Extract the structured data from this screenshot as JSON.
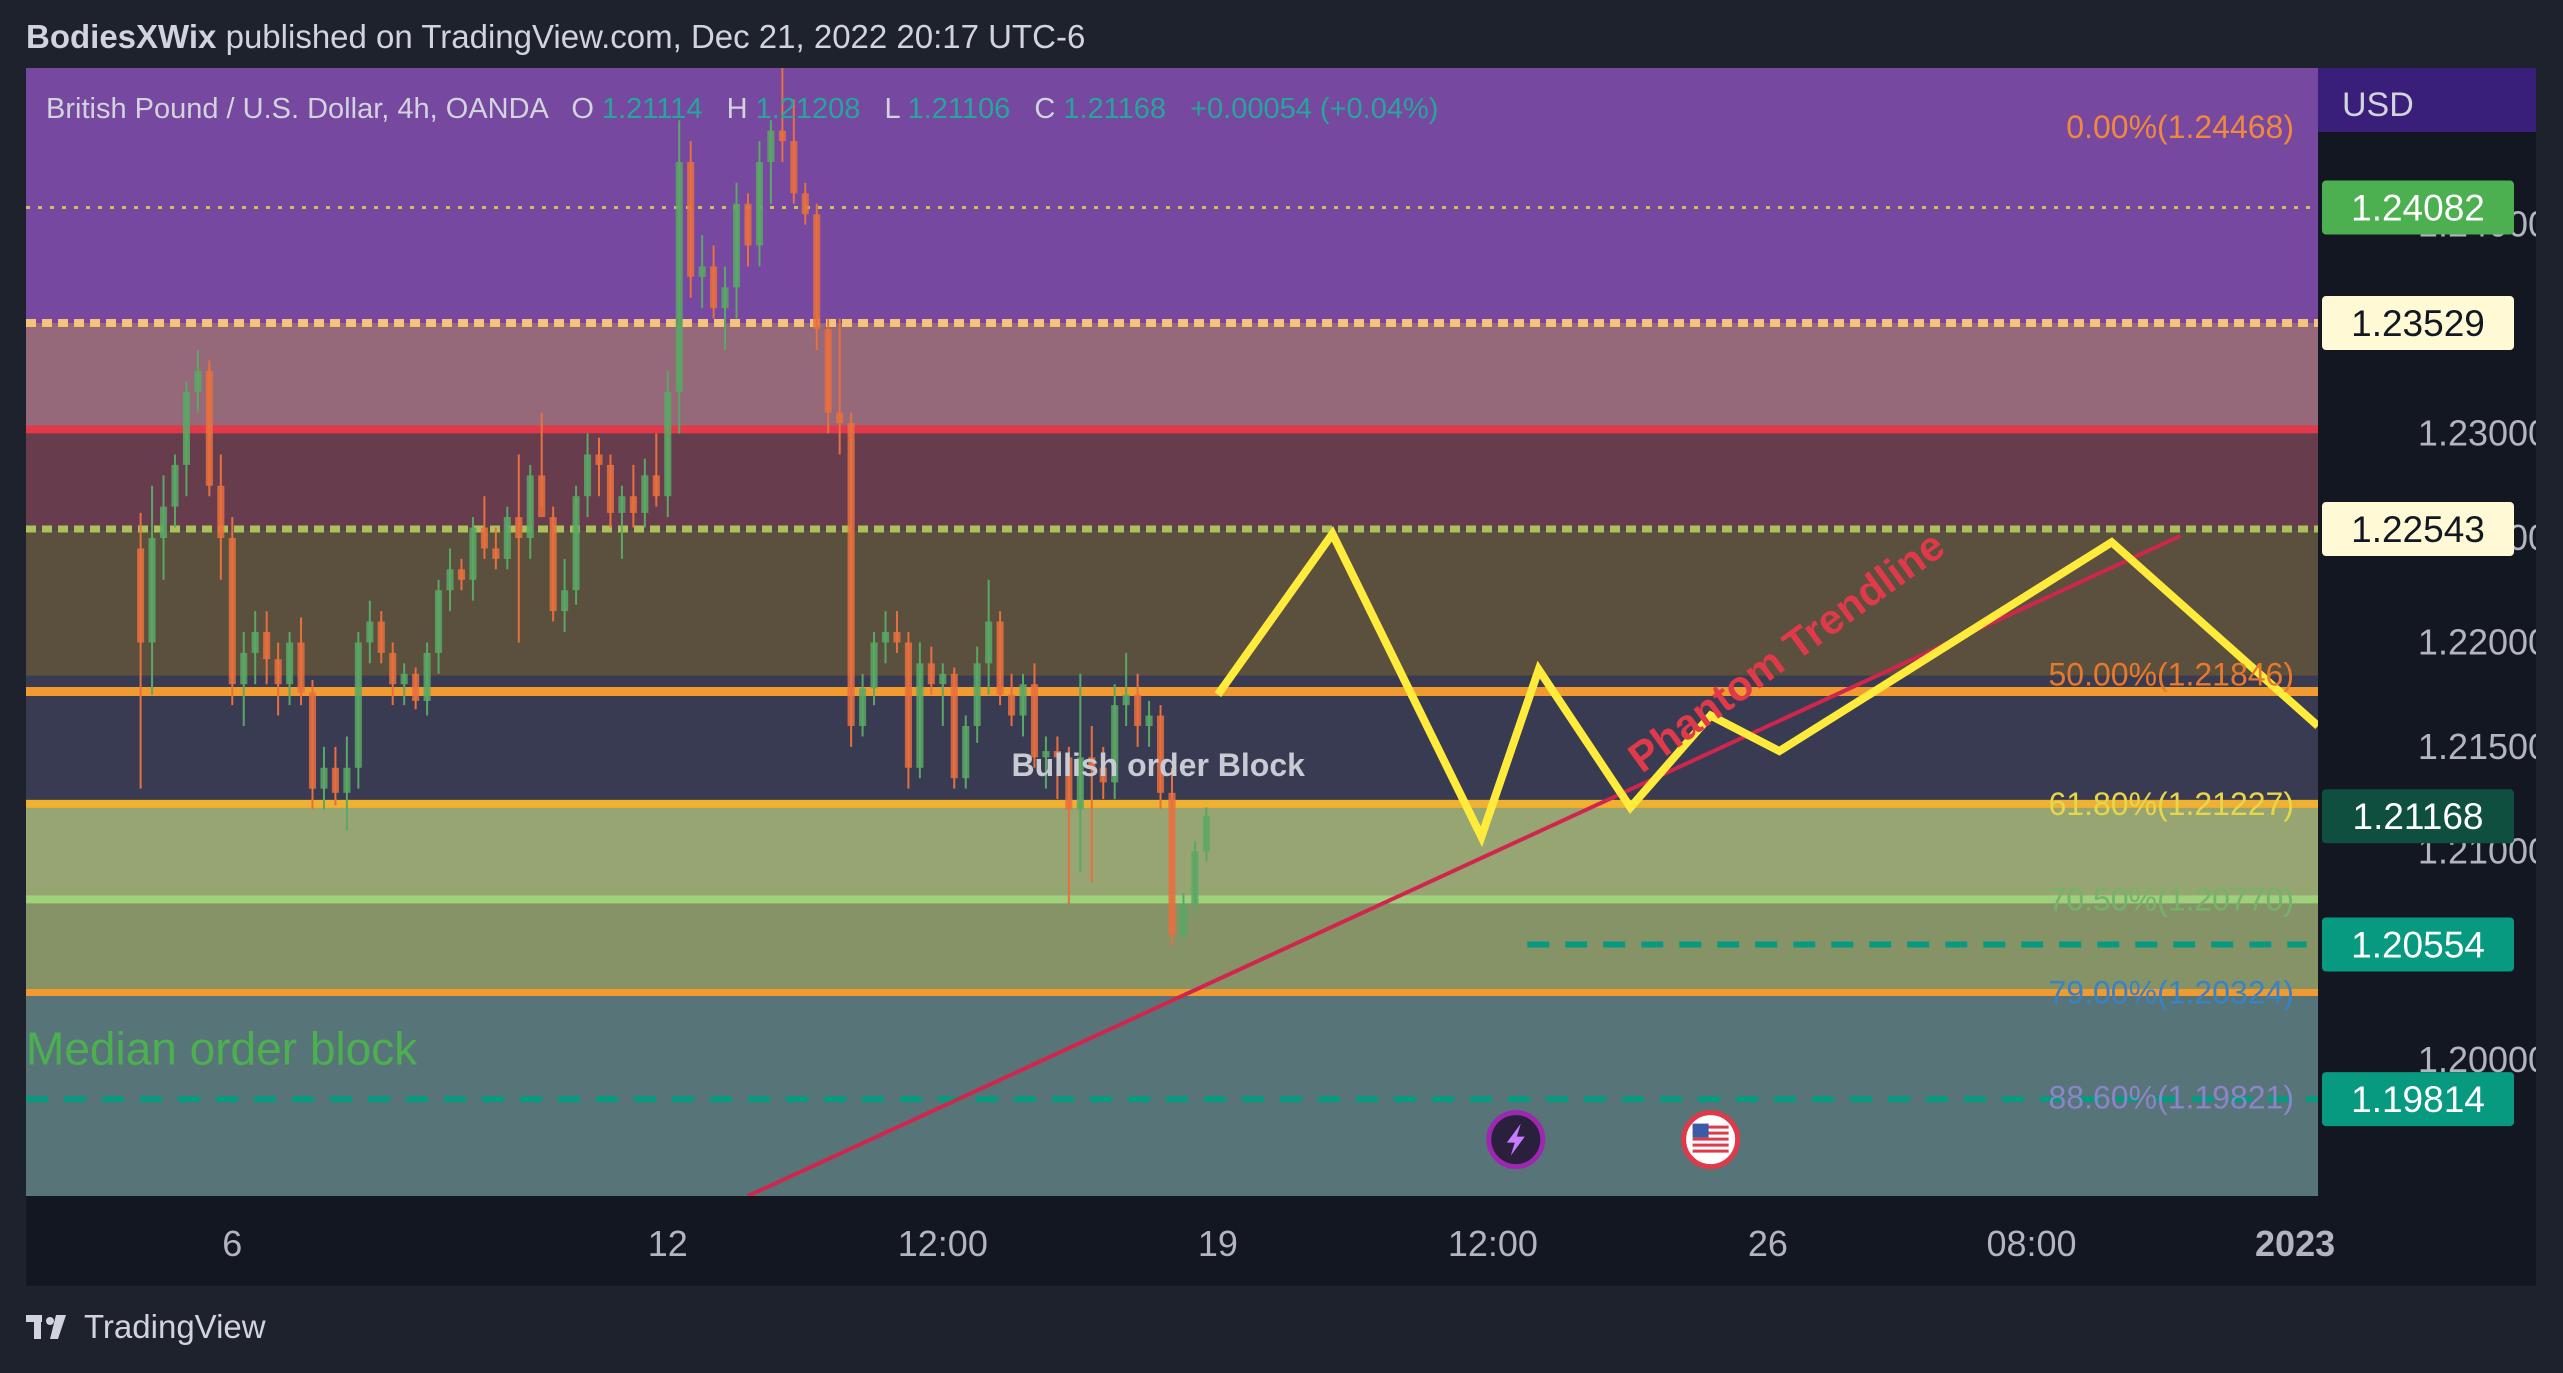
{
  "header": {
    "author": "BodiesXWix",
    "published_text": "published on TradingView.com, Dec 21, 2022 20:17 UTC-6"
  },
  "footer": {
    "brand": "TradingView",
    "logo_icon": "tradingview-logo-icon"
  },
  "chart_data": {
    "type": "candlestick",
    "symbol_line": {
      "name": "British Pound / U.S. Dollar, 4h, OANDA",
      "o_label": "O",
      "o_value": "1.21114",
      "h_label": "H",
      "h_value": "1.21208",
      "l_label": "L",
      "l_value": "1.21106",
      "c_label": "C",
      "c_value": "1.21168",
      "change": "+0.00054 (+0.04%)"
    },
    "currency": "USD",
    "ylim": [
      1.1935,
      1.2475
    ],
    "y_ticks": [
      "1.20000",
      "1.21000",
      "1.21500",
      "1.22000",
      "1.22500",
      "1.23000",
      "1.24000"
    ],
    "x_ticks": [
      {
        "label": "6",
        "x": 8,
        "bold": false
      },
      {
        "label": "12",
        "x": 46,
        "bold": false
      },
      {
        "label": "12:00",
        "x": 70,
        "bold": false
      },
      {
        "label": "19",
        "x": 94,
        "bold": false
      },
      {
        "label": "12:00",
        "x": 118,
        "bold": false
      },
      {
        "label": "26",
        "x": 142,
        "bold": false
      },
      {
        "label": "08:00",
        "x": 165,
        "bold": false
      },
      {
        "label": "2023",
        "x": 188,
        "bold": true
      }
    ],
    "xlim": [
      -10,
      190
    ],
    "price_labels": [
      {
        "value": 1.24082,
        "text": "1.24082",
        "bg": "#4caf50",
        "fg": "#ffffff"
      },
      {
        "value": 1.23529,
        "text": "1.23529",
        "bg": "#fff9d6",
        "fg": "#131722"
      },
      {
        "value": 1.22543,
        "text": "1.22543",
        "bg": "#fff9d6",
        "fg": "#131722"
      },
      {
        "value": 1.21168,
        "text": "1.21168",
        "bg": "#0e4f3f",
        "fg": "#ffffff"
      },
      {
        "value": 1.20554,
        "text": "1.20554",
        "bg": "#089981",
        "fg": "#ffffff"
      },
      {
        "value": 1.19814,
        "text": "1.19814",
        "bg": "#089981",
        "fg": "#ffffff"
      }
    ],
    "zones": [
      {
        "from": 1.2475,
        "to": 1.2353,
        "color": "#7b4ba8",
        "opacity": 0.95
      },
      {
        "from": 1.2353,
        "to": 1.2302,
        "color": "#9c6e7f",
        "opacity": 0.95
      },
      {
        "from": 1.2302,
        "to": 1.2254,
        "color": "#6b3e50",
        "opacity": 0.95
      },
      {
        "from": 1.2254,
        "to": 1.2184,
        "color": "#5f5240",
        "opacity": 0.95
      },
      {
        "from": 1.2184,
        "to": 1.2123,
        "color": "#3b3d55",
        "opacity": 0.95
      },
      {
        "from": 1.2123,
        "to": 1.2033,
        "color": "#8c9a6b",
        "opacity": 0.95
      },
      {
        "from": 1.2123,
        "to": 1.2077,
        "color": "#a3b07a",
        "opacity": 0.6
      },
      {
        "from": 1.2033,
        "to": 1.1935,
        "color": "#5b7a7d",
        "opacity": 0.95
      }
    ],
    "fib_levels": [
      {
        "text": "0.00%(1.24468)",
        "value": 1.24468,
        "color": "#f0883e"
      },
      {
        "text": "50.00%(1.21846)",
        "value": 1.21846,
        "color": "#e8782a"
      },
      {
        "text": "61.80%(1.21227)",
        "value": 1.21227,
        "color": "#e6d64a"
      },
      {
        "text": "70.50%(1.20770)",
        "value": 1.2077,
        "color": "#73b46a"
      },
      {
        "text": "79.00%(1.20324)",
        "value": 1.20324,
        "color": "#3b82c4"
      },
      {
        "text": "88.60%(1.19821)",
        "value": 1.19821,
        "color": "#8a84c9"
      }
    ],
    "h_lines": [
      {
        "value": 1.24082,
        "color": "#c8c25a",
        "width": 3,
        "dash": "4 8"
      },
      {
        "value": 1.23529,
        "color": "#f5c47a",
        "width": 8,
        "dash": "10 6"
      },
      {
        "value": 1.2302,
        "color": "#e0394a",
        "width": 8,
        "dash": ""
      },
      {
        "value": 1.22543,
        "color": "#a9c25a",
        "width": 7,
        "dash": "10 6"
      },
      {
        "value": 1.21765,
        "color": "#f09a30",
        "width": 9,
        "dash": ""
      },
      {
        "value": 1.21227,
        "color": "#f0b030",
        "width": 8,
        "dash": ""
      },
      {
        "value": 1.2077,
        "color": "#9fd07c",
        "width": 8,
        "dash": ""
      },
      {
        "value": 1.20324,
        "color": "#f09a30",
        "width": 7,
        "dash": ""
      },
      {
        "value": 1.19814,
        "color": "#089981",
        "width": 6,
        "dash": "22 16"
      }
    ],
    "short_dashed": {
      "value": 1.20554,
      "x_from": 121,
      "x_to": 189,
      "color": "#089981"
    },
    "annotations": [
      {
        "text": "Bullish order Block",
        "x": 76,
        "value": 1.2136,
        "color": "#c8cbd4",
        "size": 32,
        "bold": true,
        "rotate": 0
      },
      {
        "text": "Median order block",
        "x": -10,
        "value": 1.1998,
        "color": "#4caf50",
        "size": 46,
        "bold": false,
        "rotate": 0
      },
      {
        "text": "Phantom Trendline",
        "x": 131,
        "value": 1.2137,
        "color": "#e0394a",
        "size": 42,
        "bold": true,
        "rotate": -36
      }
    ],
    "trendline": {
      "points": [
        [
          53,
          1.1935
        ],
        [
          178,
          1.2251
        ]
      ],
      "color": "#d0264e"
    },
    "projection": {
      "color": "#ffeb3b",
      "points": [
        [
          94,
          1.2175
        ],
        [
          104,
          1.2252
        ],
        [
          117,
          1.2107
        ],
        [
          122,
          1.2187
        ],
        [
          130,
          1.2121
        ],
        [
          137,
          1.2165
        ],
        [
          143,
          1.2148
        ],
        [
          172,
          1.2248
        ],
        [
          190,
          1.216
        ]
      ]
    },
    "events": [
      {
        "icon": "lightning-icon",
        "x": 120,
        "value": 1.1962,
        "bg": "#2a1f3d",
        "ring": "#9c27b0"
      },
      {
        "icon": "us-flag-icon",
        "x": 137,
        "value": 1.1962,
        "bg": "#ffffff",
        "ring": "#e0394a"
      }
    ],
    "candles": [
      {
        "o": 1.2245,
        "h": 1.2262,
        "l": 1.213,
        "c": 1.22
      },
      {
        "o": 1.22,
        "h": 1.2275,
        "l": 1.2175,
        "c": 1.225
      },
      {
        "o": 1.225,
        "h": 1.228,
        "l": 1.223,
        "c": 1.2265
      },
      {
        "o": 1.2265,
        "h": 1.229,
        "l": 1.2255,
        "c": 1.2285
      },
      {
        "o": 1.2285,
        "h": 1.2325,
        "l": 1.227,
        "c": 1.232
      },
      {
        "o": 1.232,
        "h": 1.234,
        "l": 1.231,
        "c": 1.233
      },
      {
        "o": 1.233,
        "h": 1.2335,
        "l": 1.227,
        "c": 1.2275
      },
      {
        "o": 1.2275,
        "h": 1.229,
        "l": 1.223,
        "c": 1.225
      },
      {
        "o": 1.225,
        "h": 1.226,
        "l": 1.217,
        "c": 1.218
      },
      {
        "o": 1.218,
        "h": 1.2205,
        "l": 1.216,
        "c": 1.2195
      },
      {
        "o": 1.2195,
        "h": 1.2215,
        "l": 1.218,
        "c": 1.2205
      },
      {
        "o": 1.2205,
        "h": 1.2215,
        "l": 1.218,
        "c": 1.2192
      },
      {
        "o": 1.2192,
        "h": 1.22,
        "l": 1.2165,
        "c": 1.218
      },
      {
        "o": 1.218,
        "h": 1.2205,
        "l": 1.217,
        "c": 1.22
      },
      {
        "o": 1.22,
        "h": 1.2212,
        "l": 1.217,
        "c": 1.2176
      },
      {
        "o": 1.2176,
        "h": 1.2182,
        "l": 1.212,
        "c": 1.213
      },
      {
        "o": 1.213,
        "h": 1.215,
        "l": 1.212,
        "c": 1.214
      },
      {
        "o": 1.214,
        "h": 1.215,
        "l": 1.2122,
        "c": 1.2128
      },
      {
        "o": 1.2128,
        "h": 1.2155,
        "l": 1.211,
        "c": 1.214
      },
      {
        "o": 1.214,
        "h": 1.2205,
        "l": 1.213,
        "c": 1.22
      },
      {
        "o": 1.22,
        "h": 1.222,
        "l": 1.219,
        "c": 1.221
      },
      {
        "o": 1.221,
        "h": 1.2215,
        "l": 1.219,
        "c": 1.2195
      },
      {
        "o": 1.2195,
        "h": 1.22,
        "l": 1.217,
        "c": 1.218
      },
      {
        "o": 1.218,
        "h": 1.219,
        "l": 1.217,
        "c": 1.2185
      },
      {
        "o": 1.2185,
        "h": 1.2188,
        "l": 1.2168,
        "c": 1.2172
      },
      {
        "o": 1.2172,
        "h": 1.22,
        "l": 1.2165,
        "c": 1.2195
      },
      {
        "o": 1.2195,
        "h": 1.223,
        "l": 1.2185,
        "c": 1.2225
      },
      {
        "o": 1.2225,
        "h": 1.2245,
        "l": 1.2215,
        "c": 1.2235
      },
      {
        "o": 1.2235,
        "h": 1.224,
        "l": 1.2225,
        "c": 1.223
      },
      {
        "o": 1.223,
        "h": 1.226,
        "l": 1.222,
        "c": 1.2255
      },
      {
        "o": 1.2255,
        "h": 1.227,
        "l": 1.224,
        "c": 1.2245
      },
      {
        "o": 1.2245,
        "h": 1.2255,
        "l": 1.2235,
        "c": 1.224
      },
      {
        "o": 1.224,
        "h": 1.2265,
        "l": 1.2235,
        "c": 1.226
      },
      {
        "o": 1.226,
        "h": 1.229,
        "l": 1.22,
        "c": 1.225
      },
      {
        "o": 1.225,
        "h": 1.2285,
        "l": 1.224,
        "c": 1.228
      },
      {
        "o": 1.228,
        "h": 1.231,
        "l": 1.2265,
        "c": 1.226
      },
      {
        "o": 1.226,
        "h": 1.2265,
        "l": 1.221,
        "c": 1.2215
      },
      {
        "o": 1.2215,
        "h": 1.224,
        "l": 1.2205,
        "c": 1.2225
      },
      {
        "o": 1.2225,
        "h": 1.2275,
        "l": 1.2218,
        "c": 1.227
      },
      {
        "o": 1.227,
        "h": 1.23,
        "l": 1.226,
        "c": 1.229
      },
      {
        "o": 1.229,
        "h": 1.2298,
        "l": 1.227,
        "c": 1.2285
      },
      {
        "o": 1.2285,
        "h": 1.229,
        "l": 1.2255,
        "c": 1.2262
      },
      {
        "o": 1.2262,
        "h": 1.2275,
        "l": 1.224,
        "c": 1.227
      },
      {
        "o": 1.227,
        "h": 1.2285,
        "l": 1.2255,
        "c": 1.2262
      },
      {
        "o": 1.2262,
        "h": 1.2288,
        "l": 1.2255,
        "c": 1.228
      },
      {
        "o": 1.228,
        "h": 1.23,
        "l": 1.2265,
        "c": 1.227
      },
      {
        "o": 1.227,
        "h": 1.233,
        "l": 1.226,
        "c": 1.232
      },
      {
        "o": 1.232,
        "h": 1.245,
        "l": 1.23,
        "c": 1.243
      },
      {
        "o": 1.243,
        "h": 1.244,
        "l": 1.2365,
        "c": 1.2375
      },
      {
        "o": 1.2375,
        "h": 1.2395,
        "l": 1.236,
        "c": 1.238
      },
      {
        "o": 1.238,
        "h": 1.239,
        "l": 1.2355,
        "c": 1.236
      },
      {
        "o": 1.236,
        "h": 1.238,
        "l": 1.234,
        "c": 1.237
      },
      {
        "o": 1.237,
        "h": 1.242,
        "l": 1.2355,
        "c": 1.241
      },
      {
        "o": 1.241,
        "h": 1.2415,
        "l": 1.238,
        "c": 1.239
      },
      {
        "o": 1.239,
        "h": 1.244,
        "l": 1.238,
        "c": 1.243
      },
      {
        "o": 1.243,
        "h": 1.245,
        "l": 1.241,
        "c": 1.2445
      },
      {
        "o": 1.2445,
        "h": 1.2475,
        "l": 1.243,
        "c": 1.244
      },
      {
        "o": 1.244,
        "h": 1.246,
        "l": 1.241,
        "c": 1.2415
      },
      {
        "o": 1.2415,
        "h": 1.242,
        "l": 1.24,
        "c": 1.2405
      },
      {
        "o": 1.2405,
        "h": 1.241,
        "l": 1.234,
        "c": 1.235
      },
      {
        "o": 1.235,
        "h": 1.2355,
        "l": 1.23,
        "c": 1.231
      },
      {
        "o": 1.231,
        "h": 1.2355,
        "l": 1.229,
        "c": 1.2305
      },
      {
        "o": 1.2305,
        "h": 1.231,
        "l": 1.215,
        "c": 1.216
      },
      {
        "o": 1.216,
        "h": 1.2185,
        "l": 1.2155,
        "c": 1.2178
      },
      {
        "o": 1.2178,
        "h": 1.2205,
        "l": 1.217,
        "c": 1.22
      },
      {
        "o": 1.22,
        "h": 1.2215,
        "l": 1.219,
        "c": 1.2205
      },
      {
        "o": 1.2205,
        "h": 1.2215,
        "l": 1.2195,
        "c": 1.22
      },
      {
        "o": 1.22,
        "h": 1.2205,
        "l": 1.213,
        "c": 1.214
      },
      {
        "o": 1.214,
        "h": 1.22,
        "l": 1.2135,
        "c": 1.219
      },
      {
        "o": 1.219,
        "h": 1.2198,
        "l": 1.2175,
        "c": 1.218
      },
      {
        "o": 1.218,
        "h": 1.219,
        "l": 1.216,
        "c": 1.2185
      },
      {
        "o": 1.2185,
        "h": 1.2188,
        "l": 1.213,
        "c": 1.2135
      },
      {
        "o": 1.2135,
        "h": 1.2165,
        "l": 1.213,
        "c": 1.216
      },
      {
        "o": 1.216,
        "h": 1.2198,
        "l": 1.2152,
        "c": 1.219
      },
      {
        "o": 1.219,
        "h": 1.223,
        "l": 1.2175,
        "c": 1.221
      },
      {
        "o": 1.221,
        "h": 1.2215,
        "l": 1.217,
        "c": 1.2175
      },
      {
        "o": 1.2175,
        "h": 1.2185,
        "l": 1.216,
        "c": 1.2165
      },
      {
        "o": 1.2165,
        "h": 1.2185,
        "l": 1.2155,
        "c": 1.218
      },
      {
        "o": 1.218,
        "h": 1.219,
        "l": 1.214,
        "c": 1.2145
      },
      {
        "o": 1.2145,
        "h": 1.2155,
        "l": 1.213,
        "c": 1.2148
      },
      {
        "o": 1.2148,
        "h": 1.2155,
        "l": 1.2125,
        "c": 1.2145
      },
      {
        "o": 1.2145,
        "h": 1.215,
        "l": 1.2075,
        "c": 1.212
      },
      {
        "o": 1.212,
        "h": 1.2185,
        "l": 1.209,
        "c": 1.2145
      },
      {
        "o": 1.2145,
        "h": 1.216,
        "l": 1.2085,
        "c": 1.214
      },
      {
        "o": 1.214,
        "h": 1.215,
        "l": 1.2125,
        "c": 1.2133
      },
      {
        "o": 1.2133,
        "h": 1.218,
        "l": 1.2125,
        "c": 1.217
      },
      {
        "o": 1.217,
        "h": 1.2195,
        "l": 1.216,
        "c": 1.2175
      },
      {
        "o": 1.2175,
        "h": 1.2185,
        "l": 1.215,
        "c": 1.216
      },
      {
        "o": 1.216,
        "h": 1.2172,
        "l": 1.215,
        "c": 1.2165
      },
      {
        "o": 1.2165,
        "h": 1.217,
        "l": 1.212,
        "c": 1.2128
      },
      {
        "o": 1.2128,
        "h": 1.214,
        "l": 1.2055,
        "c": 1.206
      },
      {
        "o": 1.206,
        "h": 1.208,
        "l": 1.2058,
        "c": 1.2075
      },
      {
        "o": 1.2075,
        "h": 1.2105,
        "l": 1.207,
        "c": 1.21
      },
      {
        "o": 1.21,
        "h": 1.2121,
        "l": 1.2095,
        "c": 1.2117
      }
    ]
  }
}
